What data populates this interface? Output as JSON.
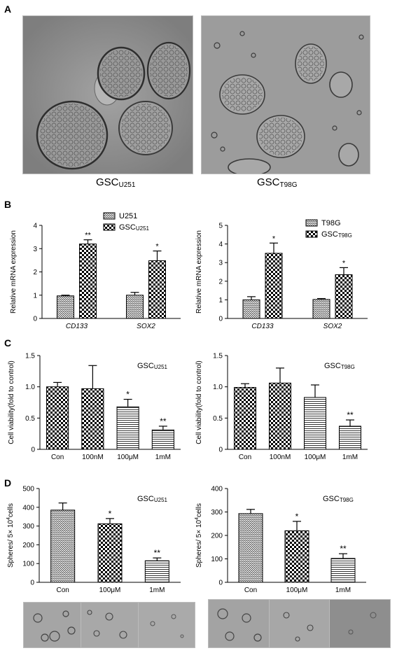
{
  "panels": {
    "A": {
      "letter": "A",
      "images": [
        {
          "label_main": "GSC",
          "label_sub": "U251"
        },
        {
          "label_main": "GSC",
          "label_sub": "T98G"
        }
      ]
    },
    "B": {
      "letter": "B"
    },
    "C": {
      "letter": "C"
    },
    "D": {
      "letter": "D"
    }
  },
  "colors": {
    "micro_bg_1": "#8f8f8f",
    "micro_bg_2": "#9c9c9c",
    "cell_edge": "#3a3a3a",
    "bar_edge": "#000000"
  },
  "chart_data": [
    {
      "id": "b1",
      "type": "bar",
      "panel": "B",
      "ylabel": "Relative mRNA expression",
      "ylim": [
        0,
        4
      ],
      "yticks": [
        0,
        1,
        2,
        3,
        4
      ],
      "categories": [
        "CD133",
        "SOX2"
      ],
      "legend_position": "top-left",
      "series": [
        {
          "name": "U251",
          "name_sub": "",
          "pattern": "hatch",
          "values": [
            0.97,
            1.0
          ],
          "errors": [
            0.03,
            0.12
          ]
        },
        {
          "name": "GSC",
          "name_sub": "U251",
          "pattern": "check",
          "values": [
            3.2,
            2.48
          ],
          "errors": [
            0.18,
            0.42
          ]
        }
      ],
      "significance": [
        [
          "",
          "**"
        ],
        [
          "",
          "*"
        ]
      ]
    },
    {
      "id": "b2",
      "type": "bar",
      "panel": "B",
      "ylabel": "Relative mRNA expression",
      "ylim": [
        0,
        5
      ],
      "yticks": [
        0,
        1,
        2,
        3,
        4,
        5
      ],
      "categories": [
        "CD133",
        "SOX2"
      ],
      "legend_position": "top-right",
      "series": [
        {
          "name": "T98G",
          "name_sub": "",
          "pattern": "hatch",
          "values": [
            1.0,
            1.02
          ],
          "errors": [
            0.17,
            0.05
          ]
        },
        {
          "name": "GSC",
          "name_sub": "T98G",
          "pattern": "check",
          "values": [
            3.5,
            2.35
          ],
          "errors": [
            0.55,
            0.38
          ]
        }
      ],
      "significance": [
        [
          "",
          "*"
        ],
        [
          "",
          "*"
        ]
      ]
    },
    {
      "id": "c1",
      "type": "bar",
      "panel": "C",
      "title_main": "GSC",
      "title_sub": "U251",
      "ylabel": "Cell viability(fold to control)",
      "ylim": [
        0,
        1.5
      ],
      "yticks": [
        "0",
        "0.5",
        "1.0",
        "1.5"
      ],
      "ytick_values": [
        0,
        0.5,
        1.0,
        1.5
      ],
      "categories": [
        "Con",
        "100nM",
        "100μM",
        "1mM"
      ],
      "values": [
        1.0,
        0.97,
        0.68,
        0.31
      ],
      "errors": [
        0.07,
        0.37,
        0.12,
        0.06
      ],
      "patterns": [
        "check",
        "check",
        "hlines",
        "hlines"
      ],
      "significance": [
        "",
        "",
        "*",
        "**"
      ]
    },
    {
      "id": "c2",
      "type": "bar",
      "panel": "C",
      "title_main": "GSC",
      "title_sub": "T98G",
      "ylabel": "Cell viability(fold to control)",
      "ylim": [
        0,
        1.5
      ],
      "yticks": [
        "0",
        "0.5",
        "1.0",
        "1.5"
      ],
      "ytick_values": [
        0,
        0.5,
        1.0,
        1.5
      ],
      "categories": [
        "Con",
        "100nM",
        "100μM",
        "1mM"
      ],
      "values": [
        0.99,
        1.06,
        0.83,
        0.37
      ],
      "errors": [
        0.06,
        0.24,
        0.2,
        0.1
      ],
      "patterns": [
        "check",
        "check",
        "hlines",
        "hlines"
      ],
      "significance": [
        "",
        "",
        "",
        "**"
      ]
    },
    {
      "id": "d1",
      "type": "bar",
      "panel": "D",
      "title_main": "GSC",
      "title_sub": "U251",
      "ylabel_main": "Spheres/ 5× 10",
      "ylabel_sup": "4",
      "ylabel_tail": "cells",
      "ylim": [
        0,
        500
      ],
      "yticks": [
        0,
        100,
        200,
        300,
        400,
        500
      ],
      "categories": [
        "Con",
        "100μM",
        "1mM"
      ],
      "values": [
        385,
        312,
        115
      ],
      "errors": [
        38,
        28,
        15
      ],
      "patterns": [
        "hatch",
        "check",
        "hlines"
      ],
      "significance": [
        "",
        "*",
        "**"
      ]
    },
    {
      "id": "d2",
      "type": "bar",
      "panel": "D",
      "title_main": "GSC",
      "title_sub": "T98G",
      "ylabel_main": "Spheres/ 5× 10",
      "ylabel_sup": "4",
      "ylabel_tail": "cells",
      "ylim": [
        0,
        400
      ],
      "yticks": [
        0,
        100,
        200,
        300,
        400
      ],
      "categories": [
        "Con",
        "100μM",
        "1mM"
      ],
      "values": [
        293,
        220,
        102
      ],
      "errors": [
        18,
        40,
        20
      ],
      "patterns": [
        "hatch",
        "check",
        "hlines"
      ],
      "significance": [
        "",
        "*",
        "**"
      ]
    }
  ]
}
